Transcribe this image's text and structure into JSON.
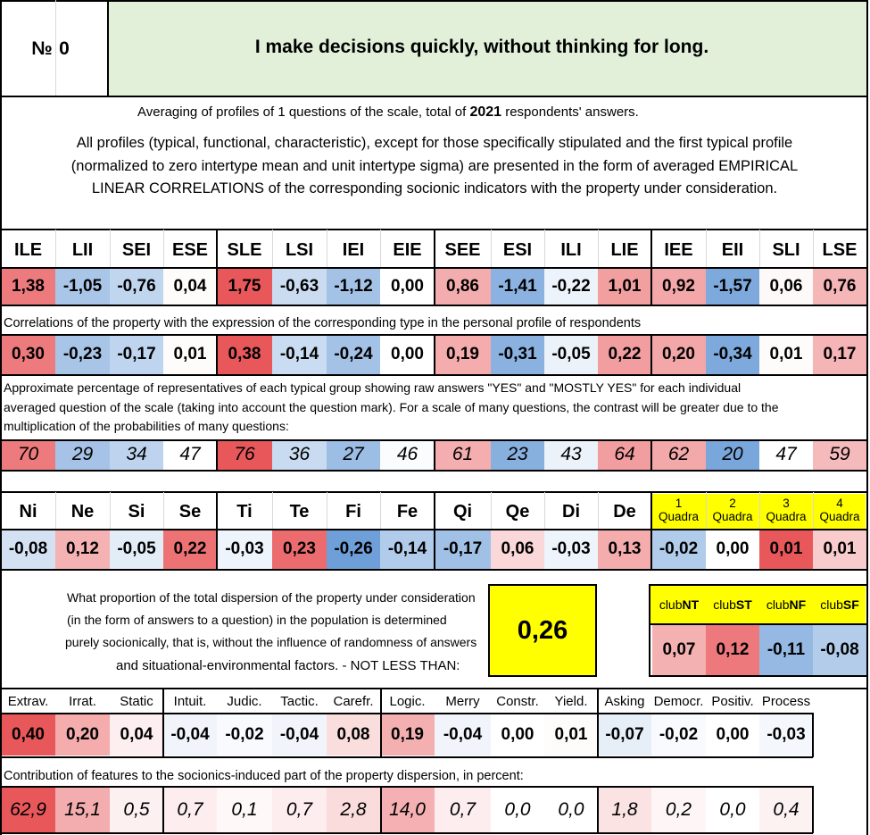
{
  "header": {
    "number_label": "№",
    "number_value": "0",
    "question": "I make decisions quickly, without thinking for long."
  },
  "intro": {
    "averaging_prefix": "Averaging of profiles of 1 questions of the scale, total of ",
    "respondents_count": "2021",
    "averaging_suffix": " respondents' answers.",
    "para_line1": "All profiles (typical, functional, characteristic), except for those specifically stipulated and the first typical profile",
    "para_line2": "(normalized to zero intertype mean and unit intertype sigma) are presented in the form of averaged EMPIRICAL",
    "para_line3": "LINEAR CORRELATIONS of the corresponding socionic indicators with the property under consideration."
  },
  "types": {
    "labels": [
      "ILE",
      "LII",
      "SEI",
      "ESE",
      "SLE",
      "LSI",
      "IEI",
      "EIE",
      "SEE",
      "ESI",
      "ILI",
      "LIE",
      "IEE",
      "EII",
      "SLI",
      "LSE"
    ],
    "profile": [
      "1,38",
      "-1,05",
      "-0,76",
      "0,04",
      "1,75",
      "-0,63",
      "-1,12",
      "0,00",
      "0,86",
      "-1,41",
      "-0,22",
      "1,01",
      "0,92",
      "-1,57",
      "0,06",
      "0,76"
    ],
    "profile_nums": [
      1.38,
      -1.05,
      -0.76,
      0.04,
      1.75,
      -0.63,
      -1.12,
      0.0,
      0.86,
      -1.41,
      -0.22,
      1.01,
      0.92,
      -1.57,
      0.06,
      0.76
    ],
    "corr_caption": "Correlations of the property with the expression of the corresponding type in the personal profile of respondents",
    "corr": [
      "0,30",
      "-0,23",
      "-0,17",
      "0,01",
      "0,38",
      "-0,14",
      "-0,24",
      "0,00",
      "0,19",
      "-0,31",
      "-0,05",
      "0,22",
      "0,20",
      "-0,34",
      "0,01",
      "0,17"
    ],
    "corr_nums": [
      0.3,
      -0.23,
      -0.17,
      0.01,
      0.38,
      -0.14,
      -0.24,
      0.0,
      0.19,
      -0.31,
      -0.05,
      0.22,
      0.2,
      -0.34,
      0.01,
      0.17
    ],
    "pct_caption_line1": "Approximate percentage of representatives of each typical group showing raw answers \"YES\" and \"MOSTLY YES\" for each individual",
    "pct_caption_line2": "averaged question of the scale (taking into account the question mark). For a scale of many questions, the contrast will be greater due to the",
    "pct_caption_line3": "multiplication of the probabilities of many questions:",
    "pct": [
      "70",
      "29",
      "34",
      "47",
      "76",
      "36",
      "27",
      "46",
      "61",
      "23",
      "43",
      "64",
      "62",
      "20",
      "47",
      "59"
    ],
    "pct_nums": [
      70,
      29,
      34,
      47,
      76,
      36,
      27,
      46,
      61,
      23,
      43,
      64,
      62,
      20,
      47,
      59
    ]
  },
  "functions": {
    "labels": [
      "Ni",
      "Ne",
      "Si",
      "Se",
      "Ti",
      "Te",
      "Fi",
      "Fe",
      "Qi",
      "Qe",
      "Di",
      "De"
    ],
    "values": [
      "-0,08",
      "0,12",
      "-0,05",
      "0,22",
      "-0,03",
      "0,23",
      "-0,26",
      "-0,14",
      "-0,17",
      "0,06",
      "-0,03",
      "0,13"
    ],
    "nums": [
      -0.08,
      0.12,
      -0.05,
      0.22,
      -0.03,
      0.23,
      -0.26,
      -0.14,
      -0.17,
      0.06,
      -0.03,
      0.13
    ]
  },
  "quadras": {
    "numbers": [
      "1",
      "2",
      "3",
      "4"
    ],
    "label": "Quadra",
    "values": [
      "-0,02",
      "0,00",
      "0,01",
      "0,01"
    ],
    "nums": [
      -0.02,
      0.0,
      0.01,
      0.01
    ]
  },
  "dispersion": {
    "line1": "What proportion of the total dispersion of the property under consideration",
    "line2": "(in the form of answers to a question) in the population is determined",
    "line3": "purely socionically, that is, without the influence of randomness of answers",
    "line4": "and situational-environmental factors. - NOT LESS THAN:",
    "value": "0,26"
  },
  "clubs": {
    "prefix": "club",
    "suffixes": [
      "NT",
      "ST",
      "NF",
      "SF"
    ],
    "values": [
      "0,07",
      "0,12",
      "-0,11",
      "-0,08"
    ],
    "nums": [
      0.07,
      0.12,
      -0.11,
      -0.08
    ]
  },
  "features": {
    "labels": [
      "Extrav.",
      "Irrat.",
      "Static",
      "Intuit.",
      "Judic.",
      "Tactic.",
      "Carefr.",
      "Logic.",
      "Merry",
      "Constr.",
      "Yield.",
      "Asking",
      "Democr.",
      "Positiv.",
      "Process"
    ],
    "values": [
      "0,40",
      "0,20",
      "0,04",
      "-0,04",
      "-0,02",
      "-0,04",
      "0,08",
      "0,19",
      "-0,04",
      "0,00",
      "0,01",
      "-0,07",
      "-0,02",
      "0,00",
      "-0,03"
    ],
    "nums": [
      0.4,
      0.2,
      0.04,
      -0.04,
      -0.02,
      -0.04,
      0.08,
      0.19,
      -0.04,
      0.0,
      0.01,
      -0.07,
      -0.02,
      0.0,
      -0.03
    ],
    "contrib_caption": "Contribution of features to the socionics-induced part of the property dispersion, in percent:",
    "contrib": [
      "62,9",
      "15,1",
      "0,5",
      "0,7",
      "0,1",
      "0,7",
      "2,8",
      "14,0",
      "0,7",
      "0,0",
      "0,0",
      "1,8",
      "0,2",
      "0,0",
      "0,4"
    ],
    "contrib_nums": [
      62.9,
      15.1,
      0.5,
      0.7,
      0.1,
      0.7,
      2.8,
      14.0,
      0.7,
      0.0,
      0.0,
      1.8,
      0.2,
      0.0,
      0.4
    ]
  },
  "colors": {
    "positive": "#e8585b",
    "negative": "#6f9fd8",
    "header_green": "#e2f0d9",
    "highlight_yellow": "#ffff00"
  }
}
